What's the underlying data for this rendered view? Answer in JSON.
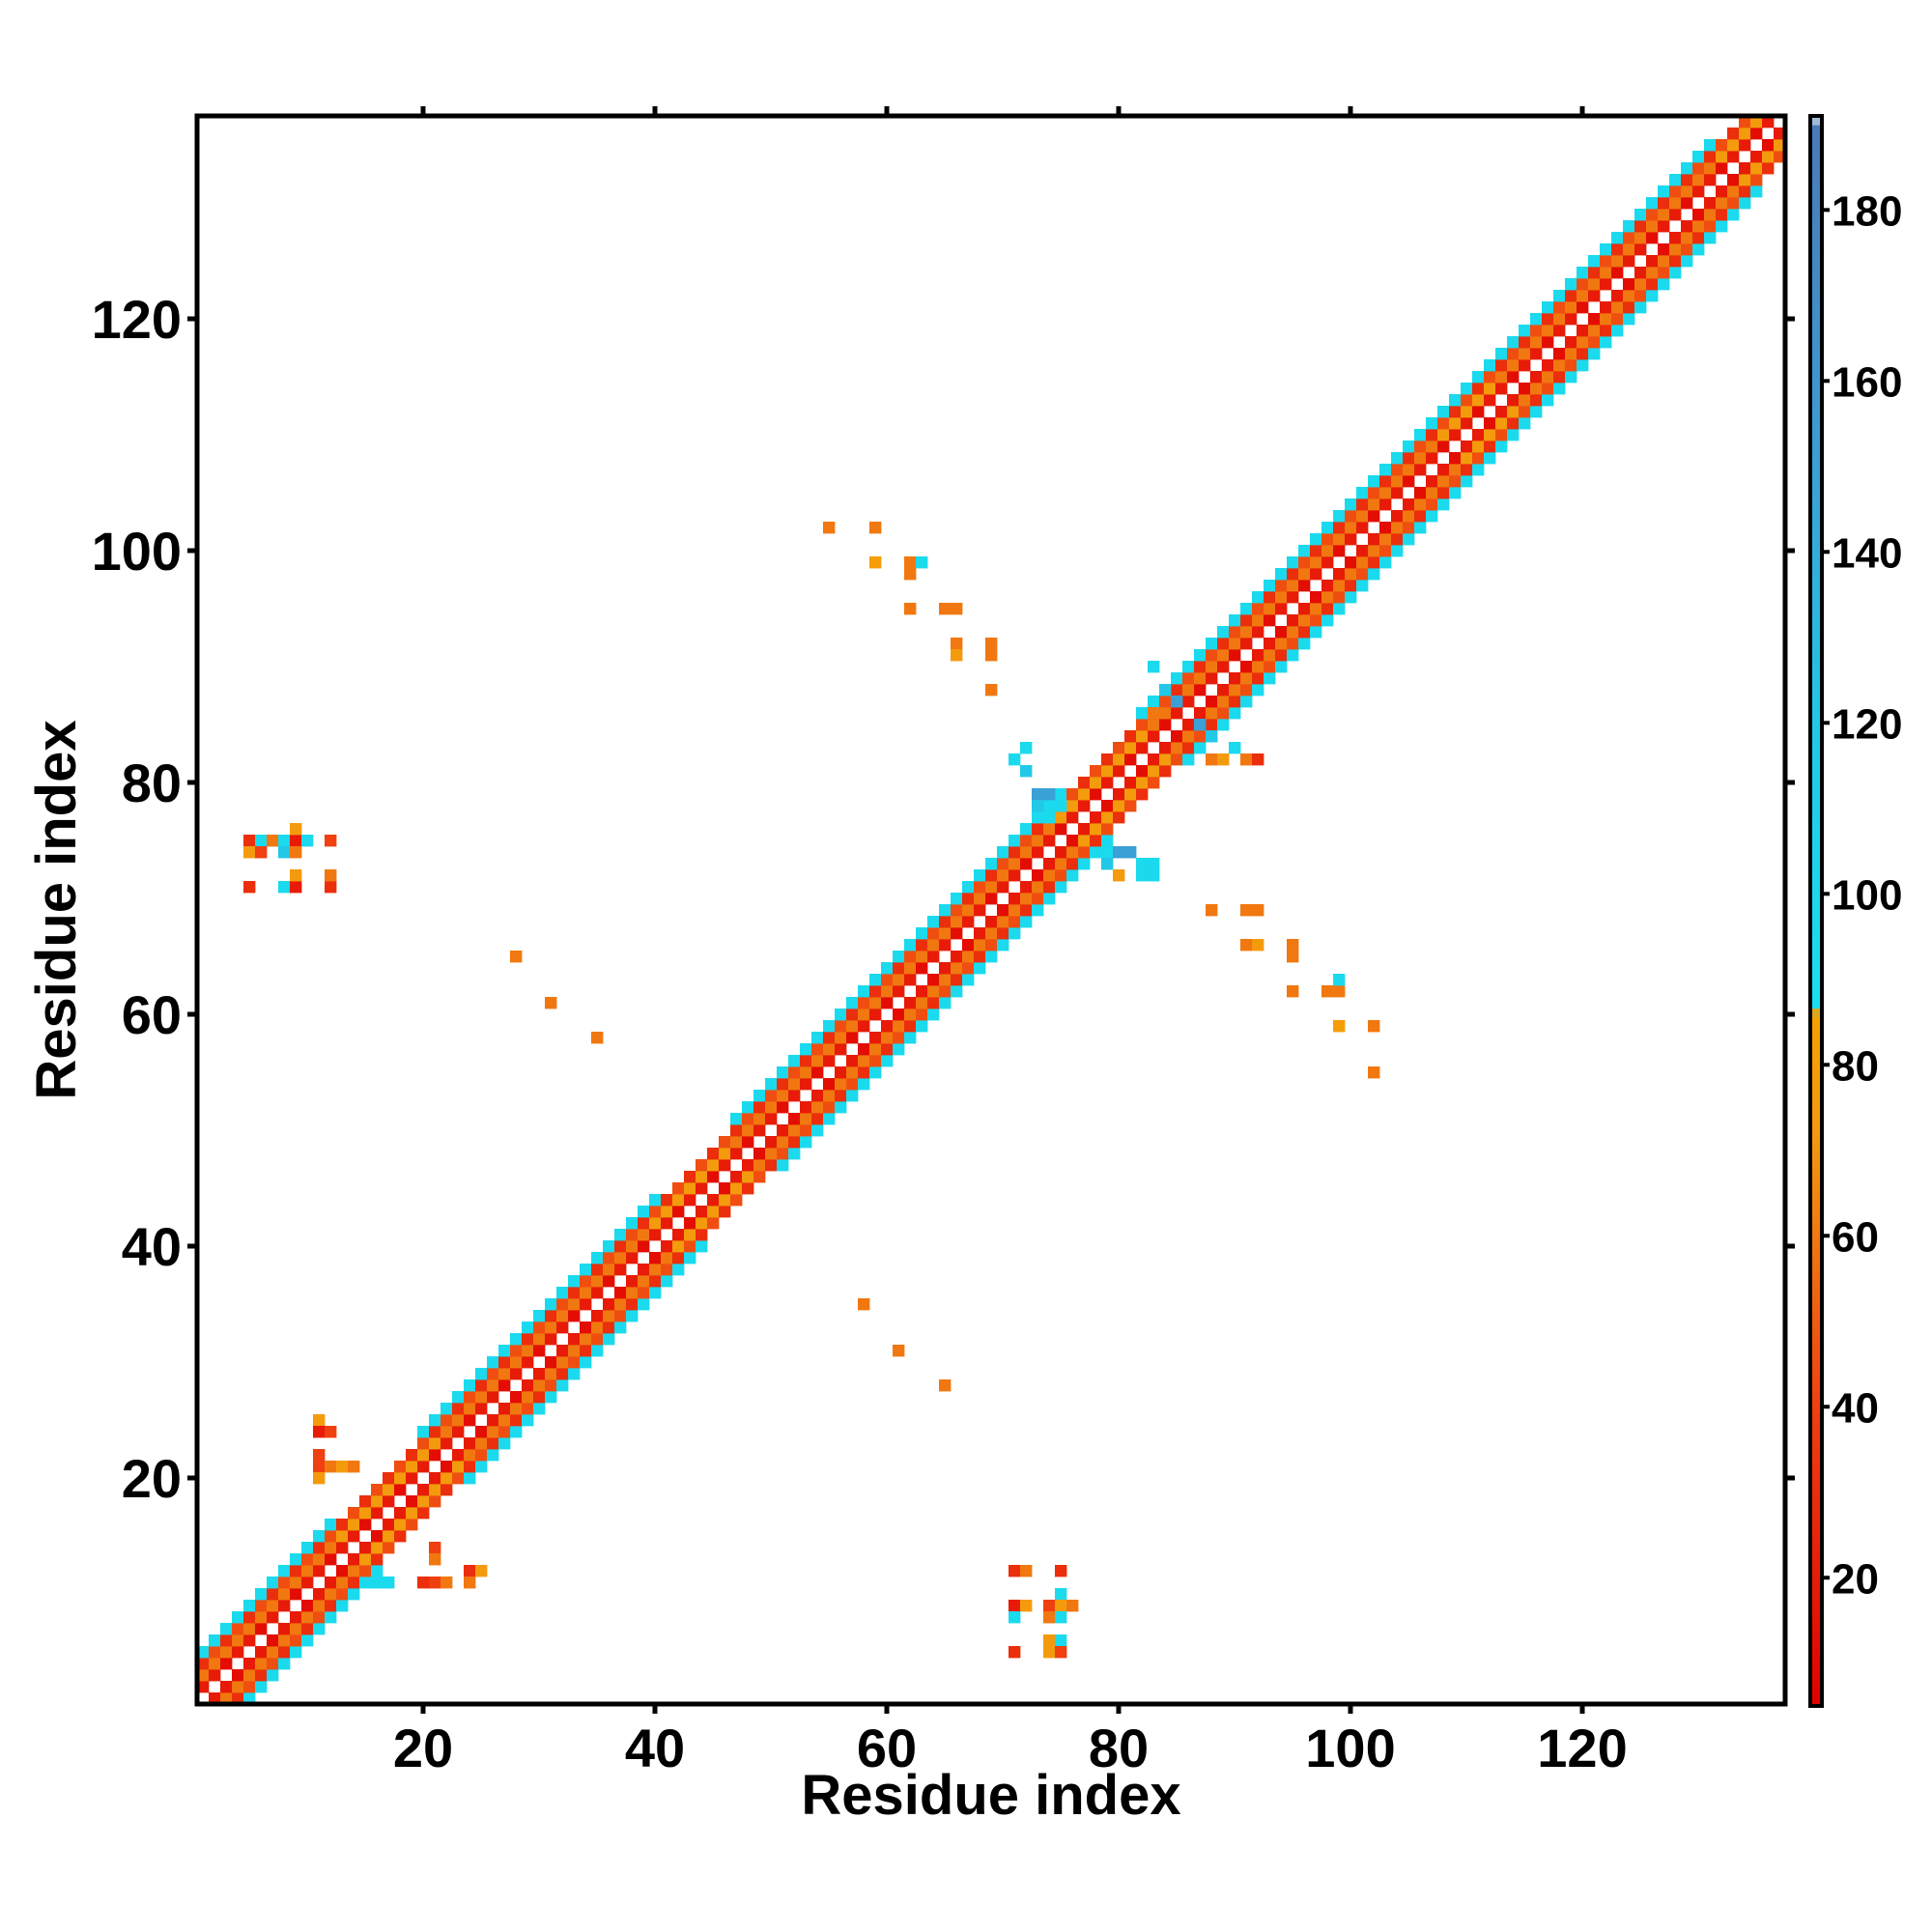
{
  "chart_data": {
    "type": "heatmap",
    "title": "",
    "xlabel": "Residue index",
    "ylabel": "Residue index",
    "xlim": [
      1,
      137
    ],
    "ylim": [
      1,
      137
    ],
    "xticks": [
      20,
      40,
      60,
      80,
      100,
      120
    ],
    "yticks": [
      20,
      40,
      60,
      80,
      100,
      120
    ],
    "grid": false,
    "colorbar": {
      "range": [
        5,
        191
      ],
      "ticks": [
        20,
        40,
        60,
        80,
        100,
        120,
        140,
        160,
        180
      ],
      "stops": [
        {
          "value": 5,
          "color": "#e00000"
        },
        {
          "value": 40,
          "color": "#f04010"
        },
        {
          "value": 55,
          "color": "#f06a10"
        },
        {
          "value": 72,
          "color": "#f49a10"
        },
        {
          "value": 86,
          "color": "#f5a000"
        },
        {
          "value": 87,
          "color": "#19e0f0"
        },
        {
          "value": 120,
          "color": "#22c8e6"
        },
        {
          "value": 150,
          "color": "#3aa0d6"
        },
        {
          "value": 190,
          "color": "#4a7ab8"
        },
        {
          "value": 191,
          "color": "#ffffff"
        }
      ]
    },
    "band": {
      "description_values": "contacts along diagonal |i-j|<=4; value by offset",
      "offset_values": {
        "1": 20,
        "2": 60,
        "3": 30,
        "4": 95
      },
      "helix_segments_value_offset4": 95,
      "strand_segments_value_offset2": 75
    },
    "cells": [
      {
        "x": 5,
        "y": 75,
        "v": 30
      },
      {
        "x": 6,
        "y": 75,
        "v": 95
      },
      {
        "x": 7,
        "y": 75,
        "v": 60
      },
      {
        "x": 8,
        "y": 75,
        "v": 95
      },
      {
        "x": 9,
        "y": 75,
        "v": 20
      },
      {
        "x": 10,
        "y": 75,
        "v": 95
      },
      {
        "x": 12,
        "y": 75,
        "v": 40
      },
      {
        "x": 5,
        "y": 74,
        "v": 75
      },
      {
        "x": 6,
        "y": 74,
        "v": 40
      },
      {
        "x": 8,
        "y": 74,
        "v": 120
      },
      {
        "x": 9,
        "y": 74,
        "v": 60
      },
      {
        "x": 9,
        "y": 76,
        "v": 75
      },
      {
        "x": 5,
        "y": 71,
        "v": 30
      },
      {
        "x": 8,
        "y": 71,
        "v": 95
      },
      {
        "x": 9,
        "y": 71,
        "v": 20
      },
      {
        "x": 12,
        "y": 71,
        "v": 30
      },
      {
        "x": 9,
        "y": 72,
        "v": 75
      },
      {
        "x": 12,
        "y": 72,
        "v": 60
      },
      {
        "x": 28,
        "y": 65,
        "v": 60
      },
      {
        "x": 31,
        "y": 61,
        "v": 60
      },
      {
        "x": 35,
        "y": 58,
        "v": 60
      },
      {
        "x": 58,
        "y": 35,
        "v": 60
      },
      {
        "x": 61,
        "y": 31,
        "v": 60
      },
      {
        "x": 65,
        "y": 28,
        "v": 60
      },
      {
        "x": 55,
        "y": 102,
        "v": 60
      },
      {
        "x": 59,
        "y": 102,
        "v": 60
      },
      {
        "x": 59,
        "y": 99,
        "v": 80
      },
      {
        "x": 62,
        "y": 99,
        "v": 60
      },
      {
        "x": 63,
        "y": 99,
        "v": 95
      },
      {
        "x": 62,
        "y": 98,
        "v": 60
      },
      {
        "x": 62,
        "y": 95,
        "v": 60
      },
      {
        "x": 65,
        "y": 95,
        "v": 60
      },
      {
        "x": 66,
        "y": 95,
        "v": 60
      },
      {
        "x": 66,
        "y": 92,
        "v": 60
      },
      {
        "x": 69,
        "y": 92,
        "v": 60
      },
      {
        "x": 66,
        "y": 91,
        "v": 75
      },
      {
        "x": 69,
        "y": 91,
        "v": 60
      },
      {
        "x": 69,
        "y": 88,
        "v": 60
      },
      {
        "x": 88,
        "y": 69,
        "v": 60
      },
      {
        "x": 91,
        "y": 69,
        "v": 60
      },
      {
        "x": 92,
        "y": 69,
        "v": 60
      },
      {
        "x": 91,
        "y": 66,
        "v": 60
      },
      {
        "x": 92,
        "y": 66,
        "v": 75
      },
      {
        "x": 95,
        "y": 66,
        "v": 60
      },
      {
        "x": 95,
        "y": 65,
        "v": 60
      },
      {
        "x": 95,
        "y": 62,
        "v": 60
      },
      {
        "x": 98,
        "y": 62,
        "v": 60
      },
      {
        "x": 99,
        "y": 62,
        "v": 60
      },
      {
        "x": 99,
        "y": 63,
        "v": 95
      },
      {
        "x": 99,
        "y": 59,
        "v": 80
      },
      {
        "x": 102,
        "y": 59,
        "v": 60
      },
      {
        "x": 102,
        "y": 55,
        "v": 60
      },
      {
        "x": 71,
        "y": 12,
        "v": 30
      },
      {
        "x": 72,
        "y": 12,
        "v": 60
      },
      {
        "x": 75,
        "y": 12,
        "v": 30
      },
      {
        "x": 75,
        "y": 10,
        "v": 95
      },
      {
        "x": 71,
        "y": 9,
        "v": 20
      },
      {
        "x": 72,
        "y": 9,
        "v": 75
      },
      {
        "x": 74,
        "y": 9,
        "v": 40
      },
      {
        "x": 75,
        "y": 9,
        "v": 75
      },
      {
        "x": 76,
        "y": 9,
        "v": 60
      },
      {
        "x": 71,
        "y": 8,
        "v": 95
      },
      {
        "x": 74,
        "y": 8,
        "v": 60
      },
      {
        "x": 75,
        "y": 8,
        "v": 95
      },
      {
        "x": 74,
        "y": 6,
        "v": 75
      },
      {
        "x": 75,
        "y": 6,
        "v": 95
      },
      {
        "x": 71,
        "y": 5,
        "v": 30
      },
      {
        "x": 74,
        "y": 5,
        "v": 75
      },
      {
        "x": 75,
        "y": 5,
        "v": 40
      },
      {
        "x": 11,
        "y": 25,
        "v": 75
      },
      {
        "x": 11,
        "y": 24,
        "v": 20
      },
      {
        "x": 12,
        "y": 24,
        "v": 40
      },
      {
        "x": 11,
        "y": 22,
        "v": 40
      },
      {
        "x": 11,
        "y": 21,
        "v": 40
      },
      {
        "x": 12,
        "y": 21,
        "v": 60
      },
      {
        "x": 13,
        "y": 21,
        "v": 75
      },
      {
        "x": 14,
        "y": 21,
        "v": 60
      },
      {
        "x": 11,
        "y": 20,
        "v": 75
      },
      {
        "x": 21,
        "y": 14,
        "v": 40
      },
      {
        "x": 21,
        "y": 13,
        "v": 60
      },
      {
        "x": 21,
        "y": 11,
        "v": 40
      },
      {
        "x": 22,
        "y": 11,
        "v": 60
      },
      {
        "x": 20,
        "y": 11,
        "v": 30
      },
      {
        "x": 24,
        "y": 12,
        "v": 30
      },
      {
        "x": 25,
        "y": 12,
        "v": 75
      },
      {
        "x": 24,
        "y": 11,
        "v": 60
      },
      {
        "x": 16,
        "y": 11,
        "v": 95
      },
      {
        "x": 17,
        "y": 11,
        "v": 95
      },
      {
        "x": 72,
        "y": 83,
        "v": 95
      },
      {
        "x": 71,
        "y": 82,
        "v": 95
      },
      {
        "x": 72,
        "y": 81,
        "v": 120
      },
      {
        "x": 73,
        "y": 79,
        "v": 150
      },
      {
        "x": 74,
        "y": 79,
        "v": 150
      },
      {
        "x": 73,
        "y": 78,
        "v": 120
      },
      {
        "x": 74,
        "y": 77,
        "v": 95
      },
      {
        "x": 75,
        "y": 78,
        "v": 95
      },
      {
        "x": 79,
        "y": 74,
        "v": 95
      },
      {
        "x": 80,
        "y": 74,
        "v": 150
      },
      {
        "x": 81,
        "y": 74,
        "v": 150
      },
      {
        "x": 79,
        "y": 73,
        "v": 120
      },
      {
        "x": 82,
        "y": 73,
        "v": 95
      },
      {
        "x": 83,
        "y": 73,
        "v": 95
      },
      {
        "x": 80,
        "y": 72,
        "v": 75
      },
      {
        "x": 82,
        "y": 72,
        "v": 95
      },
      {
        "x": 83,
        "y": 72,
        "v": 95
      },
      {
        "x": 83,
        "y": 90,
        "v": 95
      },
      {
        "x": 84,
        "y": 88,
        "v": 120
      },
      {
        "x": 85,
        "y": 87,
        "v": 150
      },
      {
        "x": 83,
        "y": 86,
        "v": 60
      },
      {
        "x": 87,
        "y": 85,
        "v": 150
      },
      {
        "x": 88,
        "y": 84,
        "v": 120
      },
      {
        "x": 90,
        "y": 83,
        "v": 95
      },
      {
        "x": 91,
        "y": 82,
        "v": 60
      },
      {
        "x": 92,
        "y": 82,
        "v": 30
      },
      {
        "x": 88,
        "y": 82,
        "v": 60
      },
      {
        "x": 89,
        "y": 82,
        "v": 75
      }
    ]
  }
}
